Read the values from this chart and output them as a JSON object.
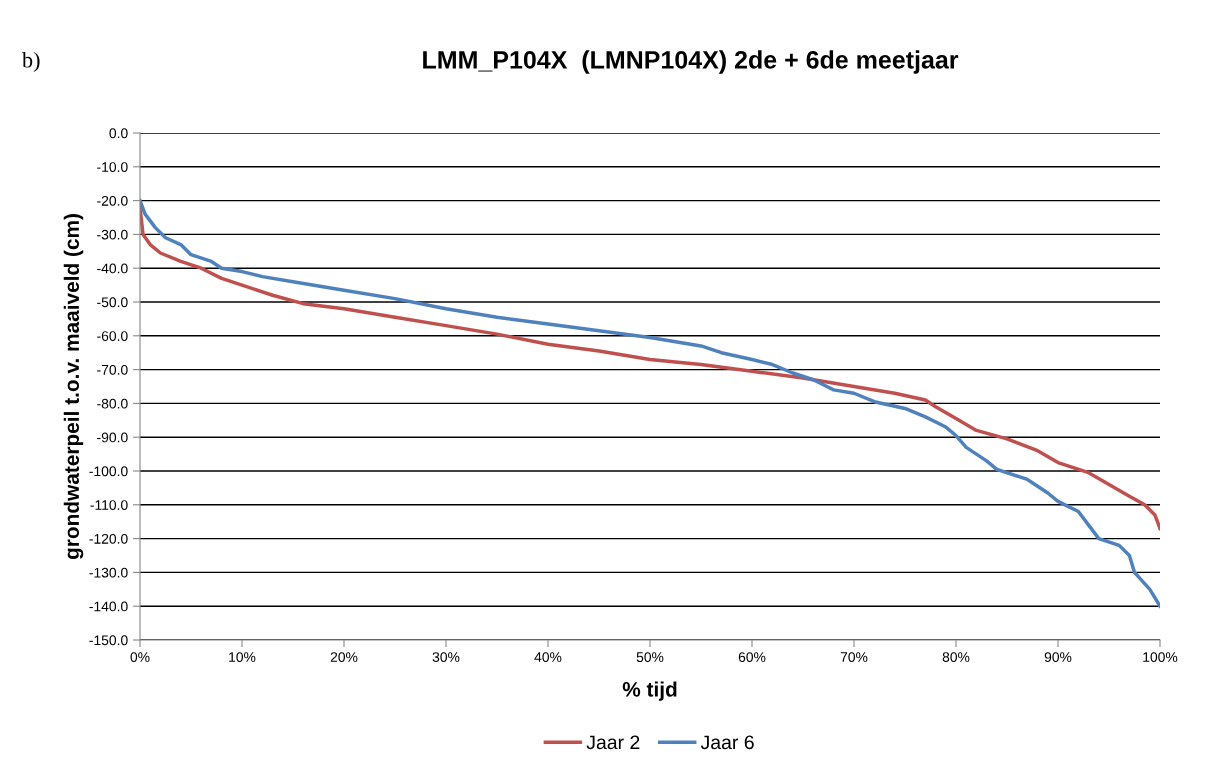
{
  "chart_data": {
    "type": "line",
    "title": "LMM_P104X  (LMNP104X) 2de + 6de meetjaar",
    "xlabel": "% tijd",
    "ylabel": "grondwaterpeil t.o.v. maaiveld (cm)",
    "annotations": [
      "b)"
    ],
    "series": [
      {
        "name": "Jaar 2",
        "color": "#c0504d",
        "x": [
          0,
          0.3,
          1,
          2,
          4,
          6,
          8,
          10,
          13,
          16,
          20,
          25,
          30,
          35,
          40,
          45,
          50,
          55,
          60,
          65,
          70,
          74,
          77,
          78,
          80,
          82,
          85,
          88,
          90,
          93,
          95,
          97,
          98.5,
          99.5,
          100
        ],
        "values": [
          -22,
          -30,
          -33,
          -35.5,
          -38,
          -40,
          -43,
          -45,
          -48,
          -50.5,
          -52,
          -54.5,
          -57,
          -59.5,
          -62.5,
          -64.5,
          -67,
          -68.5,
          -70.5,
          -72.5,
          -75,
          -77,
          -79,
          -81,
          -84.5,
          -88,
          -90.5,
          -94,
          -97.5,
          -100.5,
          -104,
          -107.5,
          -110,
          -113,
          -117
        ]
      },
      {
        "name": "Jaar 6",
        "color": "#4f81bd",
        "x": [
          0,
          0.5,
          1.5,
          2.5,
          4,
          5,
          7,
          8,
          10,
          12,
          15,
          20,
          25,
          30,
          35,
          40,
          45,
          50,
          55,
          57,
          60,
          62,
          64,
          66,
          67,
          68,
          70,
          72,
          75,
          77,
          79,
          80,
          81,
          83,
          84,
          87,
          89,
          90,
          92,
          93,
          94,
          96,
          97,
          97.5,
          99,
          100
        ],
        "values": [
          -20,
          -24,
          -28,
          -31,
          -33,
          -36,
          -38,
          -40,
          -41,
          -42.5,
          -44,
          -46.5,
          -49,
          -52,
          -54.5,
          -56.5,
          -58.5,
          -60.5,
          -63,
          -65,
          -67,
          -68.5,
          -71,
          -73,
          -74.5,
          -76,
          -77,
          -79.5,
          -81.5,
          -84,
          -87,
          -89.5,
          -93,
          -97,
          -99.5,
          -102.5,
          -106.5,
          -109,
          -112,
          -116,
          -120,
          -122,
          -125,
          -130,
          -135,
          -140
        ]
      }
    ],
    "xlim": [
      0,
      100
    ],
    "xticks": [
      {
        "value": 0,
        "label": "0%"
      },
      {
        "value": 10,
        "label": "10%"
      },
      {
        "value": 20,
        "label": "20%"
      },
      {
        "value": 30,
        "label": "30%"
      },
      {
        "value": 40,
        "label": "40%"
      },
      {
        "value": 50,
        "label": "50%"
      },
      {
        "value": 60,
        "label": "60%"
      },
      {
        "value": 70,
        "label": "70%"
      },
      {
        "value": 80,
        "label": "80%"
      },
      {
        "value": 90,
        "label": "90%"
      },
      {
        "value": 100,
        "label": "100%"
      }
    ],
    "ylim": [
      -150,
      0
    ],
    "yticks": [
      {
        "value": 0,
        "label": "0.0"
      },
      {
        "value": -10,
        "label": "-10.0"
      },
      {
        "value": -20,
        "label": "-20.0"
      },
      {
        "value": -30,
        "label": "-30.0"
      },
      {
        "value": -40,
        "label": "-40.0"
      },
      {
        "value": -50,
        "label": "-50.0"
      },
      {
        "value": -60,
        "label": "-60.0"
      },
      {
        "value": -70,
        "label": "-70.0"
      },
      {
        "value": -80,
        "label": "-80.0"
      },
      {
        "value": -90,
        "label": "-90.0"
      },
      {
        "value": -100,
        "label": "-100.0"
      },
      {
        "value": -110,
        "label": "-110.0"
      },
      {
        "value": -120,
        "label": "-120.0"
      },
      {
        "value": -130,
        "label": "-130.0"
      },
      {
        "value": -140,
        "label": "-140.0"
      },
      {
        "value": -150,
        "label": "-150.0"
      }
    ],
    "grid": "y",
    "legend": "bottom",
    "marker": "none",
    "line_style": "solid"
  }
}
